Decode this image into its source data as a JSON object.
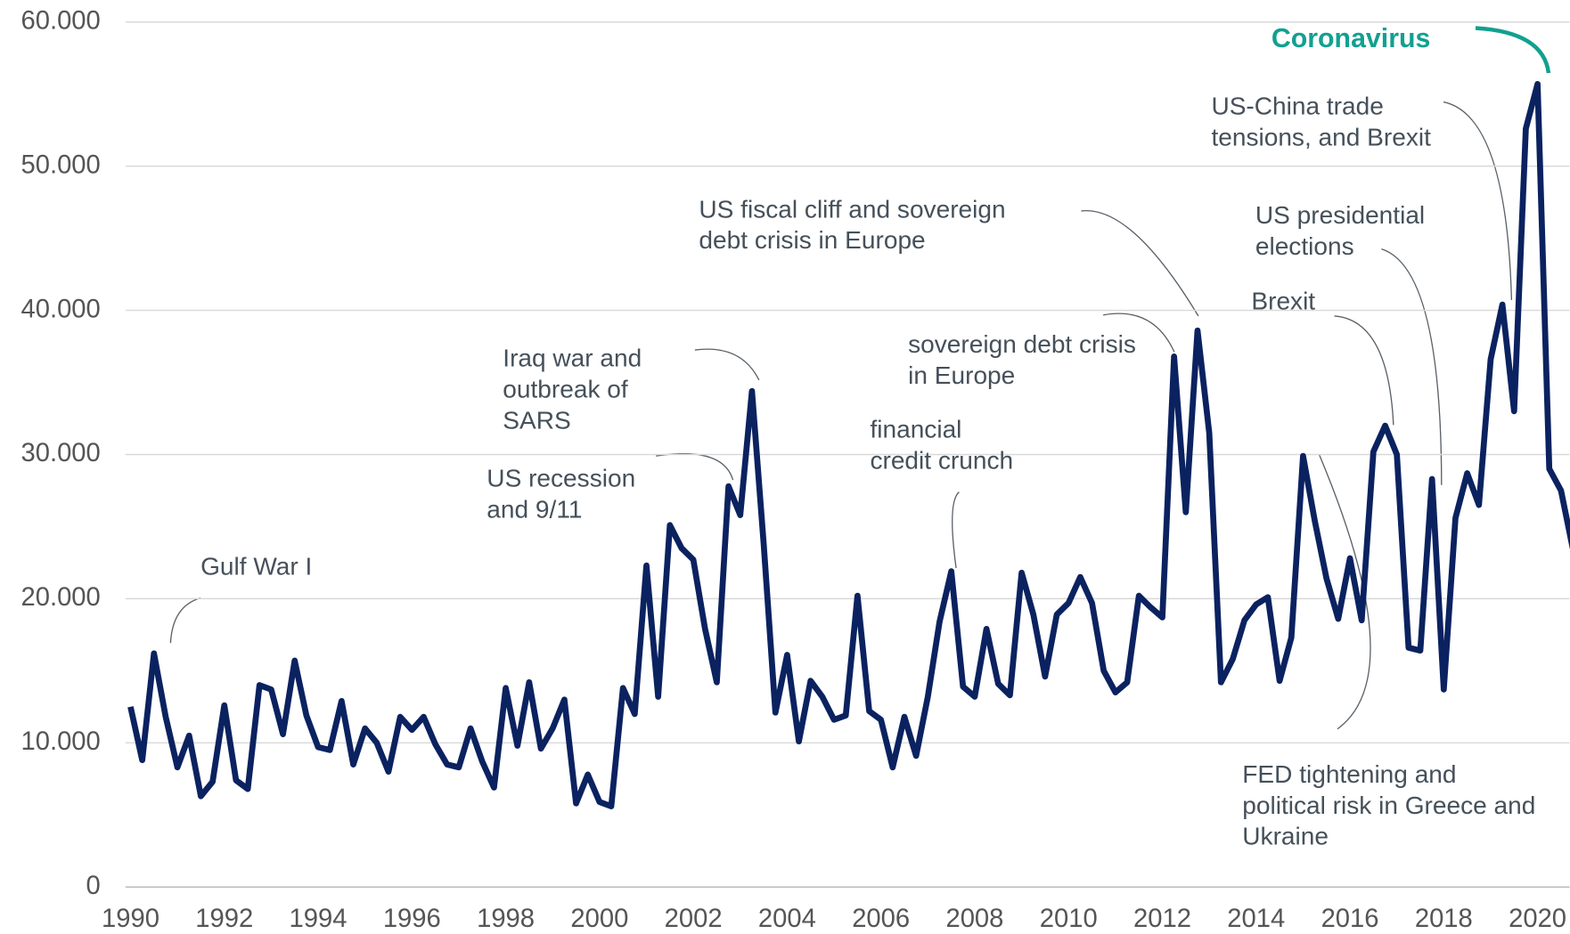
{
  "chart_data": {
    "type": "line",
    "x": [
      1990,
      1990.25,
      1990.5,
      1990.75,
      1991,
      1991.25,
      1991.5,
      1991.75,
      1992,
      1992.25,
      1992.5,
      1992.75,
      1993,
      1993.25,
      1993.5,
      1993.75,
      1994,
      1994.25,
      1994.5,
      1994.75,
      1995,
      1995.25,
      1995.5,
      1995.75,
      1996,
      1996.25,
      1996.5,
      1996.75,
      1997,
      1997.25,
      1997.5,
      1997.75,
      1998,
      1998.25,
      1998.5,
      1998.75,
      1999,
      1999.25,
      1999.5,
      1999.75,
      2000,
      2000.25,
      2000.5,
      2000.75,
      2001,
      2001.25,
      2001.5,
      2001.75,
      2002,
      2002.25,
      2002.5,
      2002.75,
      2003,
      2003.25,
      2003.5,
      2003.75,
      2004,
      2004.25,
      2004.5,
      2004.75,
      2005,
      2005.25,
      2005.5,
      2005.75,
      2006,
      2006.25,
      2006.5,
      2006.75,
      2007,
      2007.25,
      2007.5,
      2007.75,
      2008,
      2008.25,
      2008.5,
      2008.75,
      2009,
      2009.25,
      2009.5,
      2009.75,
      2010,
      2010.25,
      2010.5,
      2010.75,
      2011,
      2011.25,
      2011.5,
      2011.75,
      2012,
      2012.25,
      2012.5,
      2012.75,
      2013,
      2013.25,
      2013.5,
      2013.75,
      2014,
      2014.25,
      2014.5,
      2014.75,
      2015,
      2015.25,
      2015.5,
      2015.75,
      2016,
      2016.25,
      2016.5,
      2016.75,
      2017,
      2017.25,
      2017.5,
      2017.75,
      2018,
      2018.25,
      2018.5,
      2018.75,
      2019,
      2019.25,
      2019.5,
      2019.75,
      2020,
      2020.25,
      2020.5,
      2020.75
    ],
    "series": [
      {
        "color": "#0b2260",
        "values": [
          12500,
          8800,
          16200,
          11800,
          8300,
          10500,
          6300,
          7300,
          12600,
          7400,
          6800,
          14000,
          13700,
          10600,
          15700,
          11900,
          9700,
          9500,
          12900,
          8500,
          11000,
          10000,
          8000,
          11800,
          10900,
          11800,
          9900,
          8500,
          8300,
          11000,
          8700,
          6900,
          13800,
          9800,
          14200,
          9600,
          11000,
          13000,
          5800,
          7800,
          5900,
          5600,
          13800,
          12000,
          22300,
          13200,
          25100,
          23500,
          22700,
          17900,
          14200,
          27800,
          25800,
          34400,
          23800,
          12100,
          16100,
          10100,
          14300,
          13200,
          11600,
          11900,
          20200,
          12200,
          11600,
          8300,
          11800,
          9100,
          13200,
          18400,
          21900,
          13900,
          13200,
          17900,
          14100,
          13300,
          21800,
          18900,
          14600,
          18900,
          19700,
          21500,
          19700,
          15000,
          13500,
          14200,
          20200,
          19400,
          18700,
          36800,
          26000,
          38600,
          31500,
          14200,
          15800,
          18500,
          19600,
          20100,
          14300,
          17300,
          29900,
          25400,
          21400,
          18600,
          22800,
          18500,
          30200,
          32000,
          30000,
          16600,
          16400,
          28300,
          13700,
          25600,
          28700,
          26500,
          36600,
          40400,
          33000,
          52600,
          55700,
          29000,
          27500,
          23500
        ]
      }
    ],
    "xlim": [
      1990,
      2020.75
    ],
    "xticks": [
      1990,
      1992,
      1994,
      1996,
      1998,
      2000,
      2002,
      2004,
      2006,
      2008,
      2010,
      2012,
      2014,
      2016,
      2018,
      2020
    ],
    "ylim": [
      0,
      60000
    ],
    "yticks": [
      0,
      {
        "value": 10000,
        "label": "10.000"
      },
      {
        "value": 20000,
        "label": "20.000"
      },
      {
        "value": 30000,
        "label": "30.000"
      },
      {
        "value": 40000,
        "label": "40.000"
      },
      {
        "value": 50000,
        "label": "50.000"
      },
      {
        "value": 60000,
        "label": "60.000"
      }
    ],
    "grid": true,
    "annotations": [
      [
        "Gulf War I"
      ],
      [
        "US recession",
        "and 9/11"
      ],
      [
        "Iraq war and",
        "outbreak of",
        "SARS"
      ],
      [
        "financial",
        "credit crunch"
      ],
      [
        "sovereign debt crisis",
        "in Europe"
      ],
      [
        "US fiscal cliff and sovereign",
        "debt crisis in Europe"
      ],
      [
        "Brexit"
      ],
      [
        "US presidential",
        "elections"
      ],
      [
        "US-China trade",
        "tensions, and Brexit"
      ],
      [
        "FED tightening and",
        "political risk in Greece and",
        "Ukraine"
      ],
      [
        "Coronavirus"
      ]
    ]
  }
}
